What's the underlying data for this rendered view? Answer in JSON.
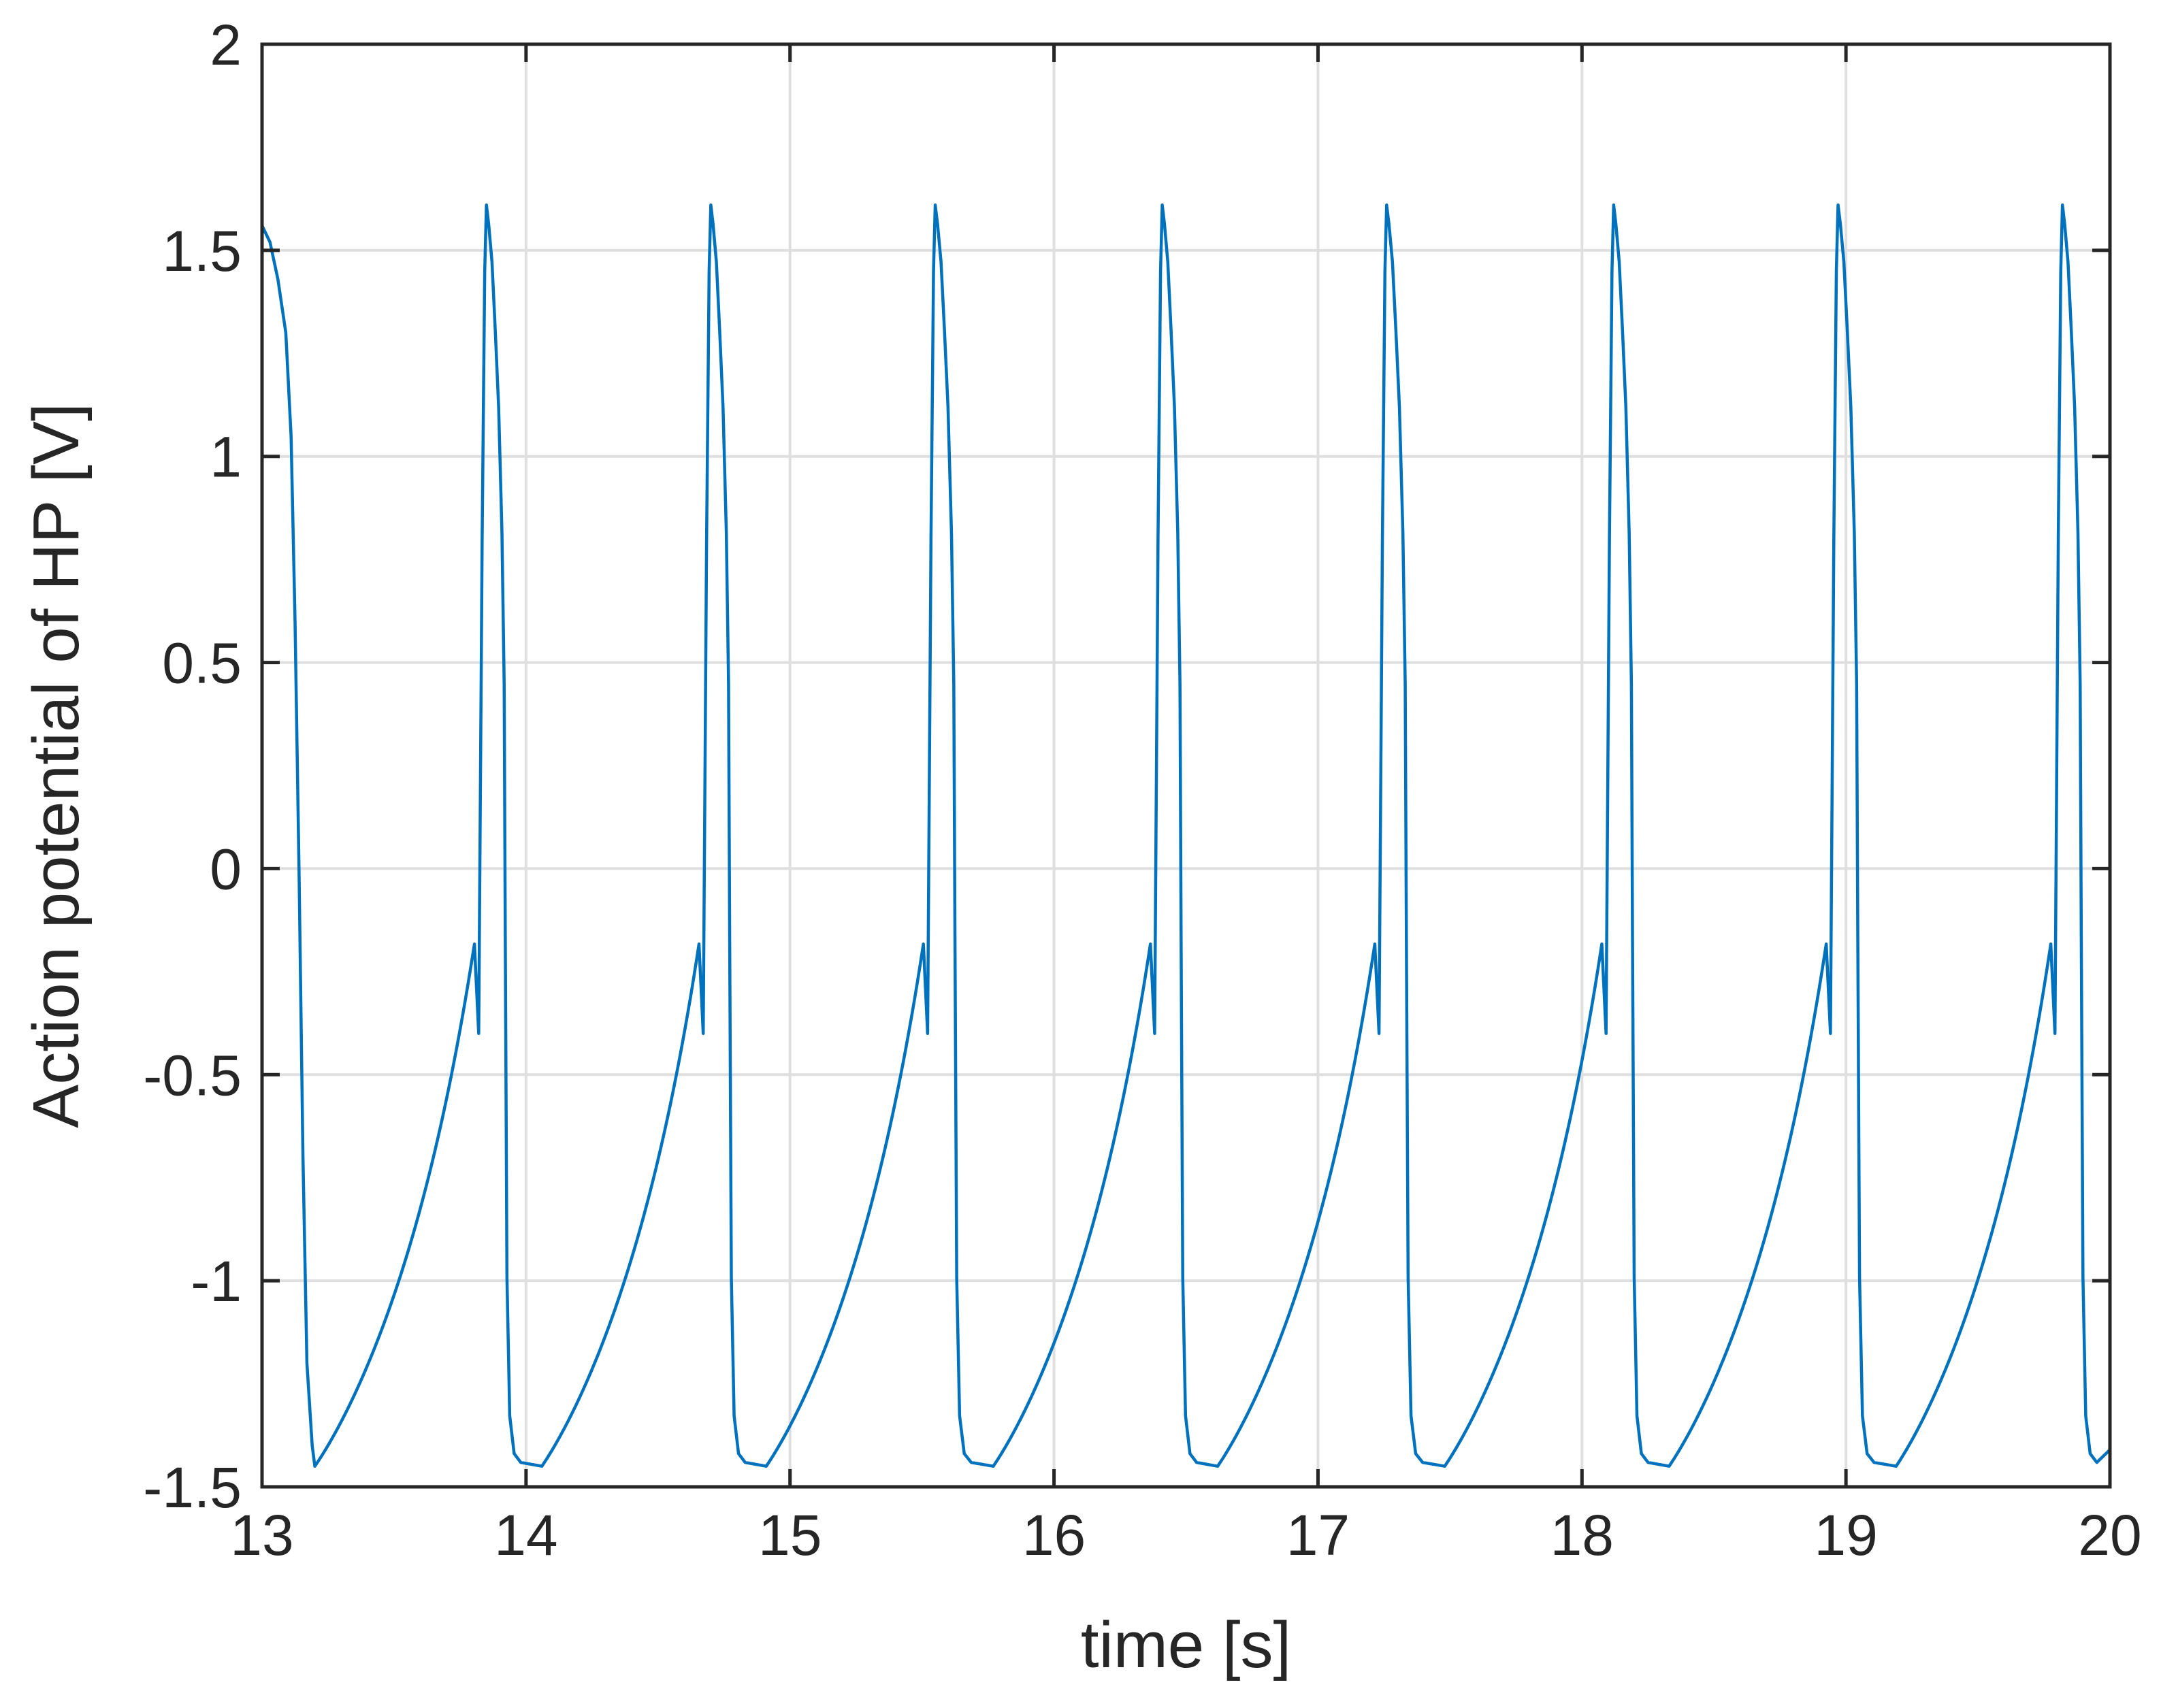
{
  "chart_data": {
    "type": "line",
    "title": "",
    "xlabel": "time [s]",
    "ylabel": "Action potential of HP [V]",
    "xlim": [
      13,
      20
    ],
    "ylim": [
      -1.5,
      2
    ],
    "xticks": [
      13,
      14,
      15,
      16,
      17,
      18,
      19,
      20
    ],
    "yticks": [
      -1.5,
      -1,
      -0.5,
      0,
      0.5,
      1,
      1.5,
      2
    ],
    "xtick_labels": [
      "13",
      "14",
      "15",
      "16",
      "17",
      "18",
      "19",
      "20"
    ],
    "ytick_labels": [
      "-1.5",
      "-1",
      "-0.5",
      "0",
      "0.5",
      "1",
      "1.5",
      "2"
    ],
    "grid": true,
    "line_color": "#0072bd",
    "grid_color": "#dfdfdf",
    "axis_color": "#262626",
    "series": [
      {
        "name": "HP action potential",
        "period_s": 0.855,
        "peak_V": 1.61,
        "trough_V": -1.45,
        "peak_times_s": [
          13.85,
          14.7,
          15.55,
          16.41,
          17.26,
          18.12,
          18.97,
          19.82
        ],
        "trough_times_s": [
          13.2,
          14.06,
          14.91,
          15.77,
          16.62,
          17.48,
          18.33,
          19.19
        ],
        "start_value_V": 1.58,
        "end_value_V": -1.41
      }
    ]
  }
}
